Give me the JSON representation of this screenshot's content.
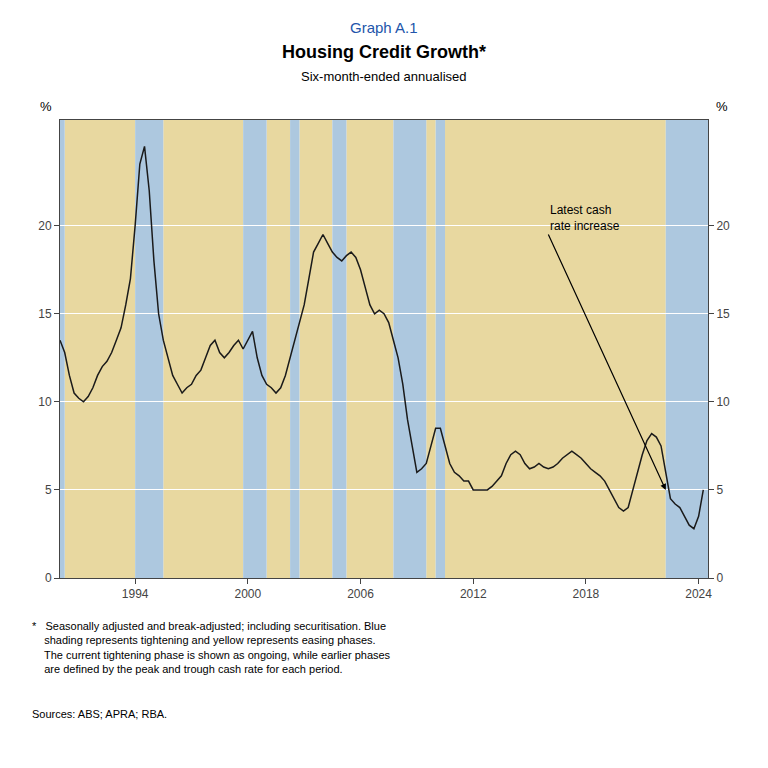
{
  "chart_data": {
    "type": "line",
    "supertitle": "Graph A.1",
    "title": "Housing Credit Growth*",
    "subtitle": "Six-month-ended annualised",
    "ylabel": "%",
    "y2label": "%",
    "x": [
      1990.0,
      1990.25,
      1990.5,
      1990.75,
      1991.0,
      1991.25,
      1991.5,
      1991.75,
      1992.0,
      1992.25,
      1992.5,
      1992.75,
      1993.0,
      1993.25,
      1993.5,
      1993.75,
      1994.0,
      1994.25,
      1994.5,
      1994.75,
      1995.0,
      1995.25,
      1995.5,
      1995.75,
      1996.0,
      1996.25,
      1996.5,
      1996.75,
      1997.0,
      1997.25,
      1997.5,
      1997.75,
      1998.0,
      1998.25,
      1998.5,
      1998.75,
      1999.0,
      1999.25,
      1999.5,
      1999.75,
      2000.0,
      2000.25,
      2000.5,
      2000.75,
      2001.0,
      2001.25,
      2001.5,
      2001.75,
      2002.0,
      2002.25,
      2002.5,
      2002.75,
      2003.0,
      2003.25,
      2003.5,
      2003.75,
      2004.0,
      2004.25,
      2004.5,
      2004.75,
      2005.0,
      2005.25,
      2005.5,
      2005.75,
      2006.0,
      2006.25,
      2006.5,
      2006.75,
      2007.0,
      2007.25,
      2007.5,
      2007.75,
      2008.0,
      2008.25,
      2008.5,
      2008.75,
      2009.0,
      2009.25,
      2009.5,
      2009.75,
      2010.0,
      2010.25,
      2010.5,
      2010.75,
      2011.0,
      2011.25,
      2011.5,
      2011.75,
      2012.0,
      2012.25,
      2012.5,
      2012.75,
      2013.0,
      2013.25,
      2013.5,
      2013.75,
      2014.0,
      2014.25,
      2014.5,
      2014.75,
      2015.0,
      2015.25,
      2015.5,
      2015.75,
      2016.0,
      2016.25,
      2016.5,
      2016.75,
      2017.0,
      2017.25,
      2017.5,
      2017.75,
      2018.0,
      2018.25,
      2018.5,
      2018.75,
      2019.0,
      2019.25,
      2019.5,
      2019.75,
      2020.0,
      2020.25,
      2020.5,
      2020.75,
      2021.0,
      2021.25,
      2021.5,
      2021.75,
      2022.0,
      2022.25,
      2022.5,
      2022.75,
      2023.0,
      2023.25,
      2023.5,
      2023.75,
      2024.0,
      2024.25
    ],
    "values": [
      13.5,
      12.8,
      11.5,
      10.5,
      10.2,
      10.0,
      10.3,
      10.8,
      11.5,
      12.0,
      12.3,
      12.8,
      13.5,
      14.2,
      15.5,
      17.0,
      20.0,
      23.5,
      24.5,
      22.0,
      18.0,
      15.0,
      13.5,
      12.5,
      11.5,
      11.0,
      10.5,
      10.8,
      11.0,
      11.5,
      11.8,
      12.5,
      13.2,
      13.5,
      12.8,
      12.5,
      12.8,
      13.2,
      13.5,
      13.0,
      13.5,
      14.0,
      12.5,
      11.5,
      11.0,
      10.8,
      10.5,
      10.8,
      11.5,
      12.5,
      13.5,
      14.5,
      15.5,
      17.0,
      18.5,
      19.0,
      19.5,
      19.0,
      18.5,
      18.2,
      18.0,
      18.3,
      18.5,
      18.2,
      17.5,
      16.5,
      15.5,
      15.0,
      15.2,
      15.0,
      14.5,
      13.5,
      12.5,
      11.0,
      9.0,
      7.5,
      6.0,
      6.2,
      6.5,
      7.5,
      8.5,
      8.5,
      7.5,
      6.5,
      6.0,
      5.8,
      5.5,
      5.5,
      5.0,
      5.0,
      5.0,
      5.0,
      5.2,
      5.5,
      5.8,
      6.5,
      7.0,
      7.2,
      7.0,
      6.5,
      6.2,
      6.3,
      6.5,
      6.3,
      6.2,
      6.3,
      6.5,
      6.8,
      7.0,
      7.2,
      7.0,
      6.8,
      6.5,
      6.2,
      6.0,
      5.8,
      5.5,
      5.0,
      4.5,
      4.0,
      3.8,
      4.0,
      5.0,
      6.0,
      7.0,
      7.8,
      8.2,
      8.0,
      7.5,
      6.0,
      4.5,
      4.2,
      4.0,
      3.5,
      3.0,
      2.8,
      3.5,
      5.0
    ],
    "color": "#1a1a1a",
    "xlim": [
      1990.0,
      2024.5
    ],
    "xticks": [
      1994,
      2000,
      2006,
      2012,
      2018,
      2024
    ],
    "ylim": [
      0,
      26
    ],
    "yticks": [
      0,
      5,
      10,
      15,
      20
    ],
    "y2lim": [
      0,
      26
    ],
    "y2ticks": [
      0,
      5,
      10,
      15,
      20
    ],
    "grid": true,
    "shading": [
      {
        "color": "#e8d8a0",
        "ranges": [
          [
            1990.25,
            1994.0
          ],
          [
            1995.5,
            1999.75
          ],
          [
            2001.0,
            2002.25
          ],
          [
            2002.75,
            2004.5
          ],
          [
            2005.25,
            2007.75
          ],
          [
            2009.5,
            2010.0
          ],
          [
            2010.5,
            2022.25
          ]
        ]
      },
      {
        "color": "#adc8df",
        "ranges": [
          [
            1989.5,
            1990.25
          ],
          [
            1994.0,
            1995.5
          ],
          [
            1999.75,
            2001.0
          ],
          [
            2002.25,
            2002.75
          ],
          [
            2004.5,
            2005.25
          ],
          [
            2007.75,
            2009.5
          ],
          [
            2010.0,
            2010.5
          ],
          [
            2022.25,
            2024.5
          ]
        ]
      }
    ],
    "annotations": [
      {
        "text": "Latest cash\nrate increase",
        "x": 2022.25,
        "y": 5.0,
        "text_x": 2016.0,
        "text_y": 19.5
      }
    ],
    "footnote": "*   Seasonally adjusted and break-adjusted; including securitisation. Blue\n    shading represents tightening and yellow represents easing phases.\n    The current tightening phase is shown as ongoing, while earlier phases\n    are defined by the peak and trough cash rate for each period.",
    "source": "Sources: ABS; APRA; RBA."
  }
}
